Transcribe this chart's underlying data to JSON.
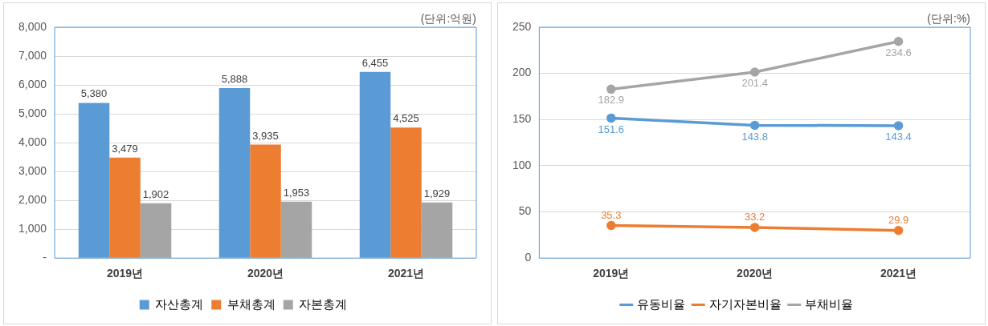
{
  "chart_data": [
    {
      "type": "bar",
      "annotations": [
        "(단위:억원)"
      ],
      "categories": [
        "2019년",
        "2020년",
        "2021년"
      ],
      "series": [
        {
          "name": "자산총계",
          "color": "#5b9bd5",
          "values": [
            5380,
            5888,
            6455
          ],
          "value_labels": [
            "5,380",
            "5,888",
            "6,455"
          ]
        },
        {
          "name": "부채총계",
          "color": "#ed7d31",
          "values": [
            3479,
            3935,
            4525
          ],
          "value_labels": [
            "3,479",
            "3,935",
            "4,525"
          ]
        },
        {
          "name": "자본총계",
          "color": "#a5a5a5",
          "values": [
            1902,
            1953,
            1929
          ],
          "value_labels": [
            "1,902",
            "1,953",
            "1,929"
          ]
        }
      ],
      "ylim": [
        0,
        8000
      ],
      "yticks": [
        {
          "value": 0,
          "label": "-"
        },
        {
          "value": 1000,
          "label": "1,000"
        },
        {
          "value": 2000,
          "label": "2,000"
        },
        {
          "value": 3000,
          "label": "3,000"
        },
        {
          "value": 4000,
          "label": "4,000"
        },
        {
          "value": 5000,
          "label": "5,000"
        },
        {
          "value": 6000,
          "label": "6,000"
        },
        {
          "value": 7000,
          "label": "7,000"
        },
        {
          "value": 8000,
          "label": "8,000"
        }
      ],
      "grid": "y",
      "legend": "bottom"
    },
    {
      "type": "line",
      "annotations": [
        "(단위:%)"
      ],
      "categories": [
        "2019년",
        "2020년",
        "2021년"
      ],
      "series": [
        {
          "name": "유동비율",
          "color": "#5b9bd5",
          "values": [
            151.6,
            143.8,
            143.4
          ],
          "value_labels": [
            "151.6",
            "143.8",
            "143.4"
          ]
        },
        {
          "name": "자기자본비율",
          "color": "#ed7d31",
          "values": [
            35.3,
            33.2,
            29.9
          ],
          "value_labels": [
            "35.3",
            "33.2",
            "29.9"
          ]
        },
        {
          "name": "부채비율",
          "color": "#a5a5a5",
          "values": [
            182.9,
            201.4,
            234.6
          ],
          "value_labels": [
            "182.9",
            "201.4",
            "234.6"
          ]
        }
      ],
      "ylim": [
        0,
        250
      ],
      "yticks": [
        0,
        50,
        100,
        150,
        200,
        250
      ],
      "grid": "y",
      "legend": "bottom",
      "marker": "circle",
      "line_style": "solid"
    }
  ]
}
